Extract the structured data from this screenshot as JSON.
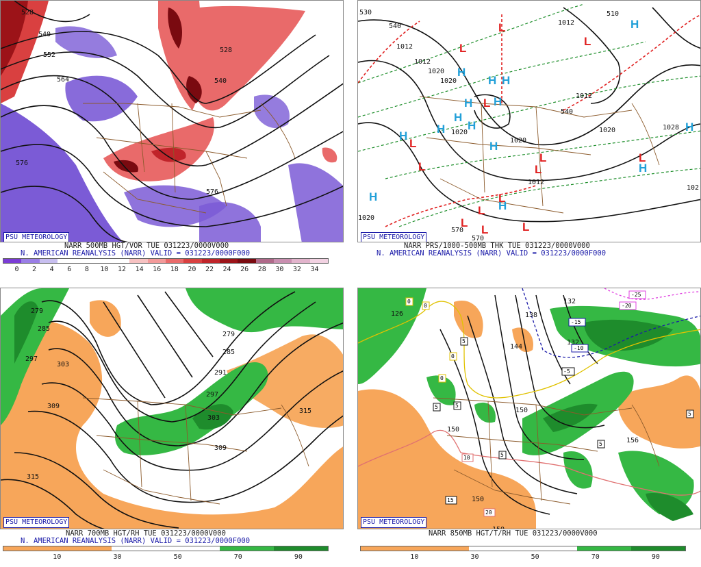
{
  "badge_text": "PSU METEOROLOGY",
  "colors": {
    "accent_blue": "#1a1aa8",
    "vort_purple": "#7b5bd6",
    "vort_red": "#c0242a",
    "dry_orange": "#f7a65a",
    "moist_green": "#35b844",
    "high_cyan": "#22a0d8",
    "low_red": "#e02020",
    "map_brown": "#8b5a2b"
  },
  "panels": [
    {
      "caption_line1": "NARR 500MB HGT/VOR TUE 031223/0000V000",
      "caption_line2": "N. AMERICAN REANALYSIS (NARR) VALID = 031223/0000F000",
      "colorbar_ticks": [
        "0",
        "2",
        "4",
        "6",
        "8",
        "10",
        "12",
        "14",
        "16",
        "18",
        "20",
        "22",
        "24",
        "26",
        "28",
        "30",
        "32",
        "34"
      ],
      "colorbar_colors": [
        "#7b3cd6",
        "#9a7ee6",
        "#c8bff0",
        "#ffffff",
        "#ffffff",
        "#ffffff",
        "#ffffff",
        "#f7c2c2",
        "#f39a9a",
        "#e96a6a",
        "#d94040",
        "#c0242a",
        "#9c1318",
        "#7a0a10",
        "#b06a8a",
        "#c98fb0",
        "#e2b4cc",
        "#f2d2e2"
      ],
      "contour_labels": [
        "528",
        "540",
        "552",
        "564",
        "576",
        "540",
        "528",
        "576"
      ]
    },
    {
      "caption_line1": "NARR PRS/1000-500MB THK TUE 031223/0000V000",
      "caption_line2": "N. AMERICAN REANALYSIS (NARR) VALID = 031223/0000F000",
      "pressure_labels": [
        "1012",
        "1012",
        "1020",
        "1020",
        "1020",
        "1020",
        "1012",
        "1028",
        "102",
        "1020",
        "1012",
        "1012",
        "1020"
      ],
      "thickness_labels": [
        "540",
        "510",
        "570",
        "540",
        "570",
        "530"
      ]
    },
    {
      "caption_line1": "NARR 700MB HGT/RH TUE 031223/0000V000",
      "caption_line2": "N. AMERICAN REANALYSIS (NARR) VALID = 031223/0000F000",
      "colorbar_ticks": [
        "10",
        "30",
        "50",
        "70",
        "90"
      ],
      "colorbar_colors": [
        "#f7a65a",
        "#f7a65a",
        "#ffffff",
        "#ffffff",
        "#35b844",
        "#1e8c2c"
      ],
      "contour_labels": [
        "279",
        "285",
        "297",
        "303",
        "309",
        "279",
        "285",
        "291",
        "297",
        "303",
        "315",
        "309",
        "315"
      ]
    },
    {
      "caption_line1": "NARR 850MB HGT/T/RH TUE 031223/0000V000",
      "caption_line2": "",
      "colorbar_ticks": [
        "10",
        "30",
        "50",
        "70",
        "90"
      ],
      "colorbar_colors": [
        "#f7a65a",
        "#f7a65a",
        "#ffffff",
        "#ffffff",
        "#35b844",
        "#1e8c2c"
      ],
      "contour_labels": [
        "126",
        "132",
        "138",
        "144",
        "132",
        "150",
        "150",
        "156",
        "150",
        "150"
      ],
      "temperature_boxes": [
        "0",
        "0",
        "5",
        "0",
        "0",
        "5",
        "-15",
        "-10",
        "-5",
        "5",
        "5",
        "10",
        "15",
        "5",
        "5",
        "20",
        "-20",
        "-25"
      ]
    }
  ]
}
